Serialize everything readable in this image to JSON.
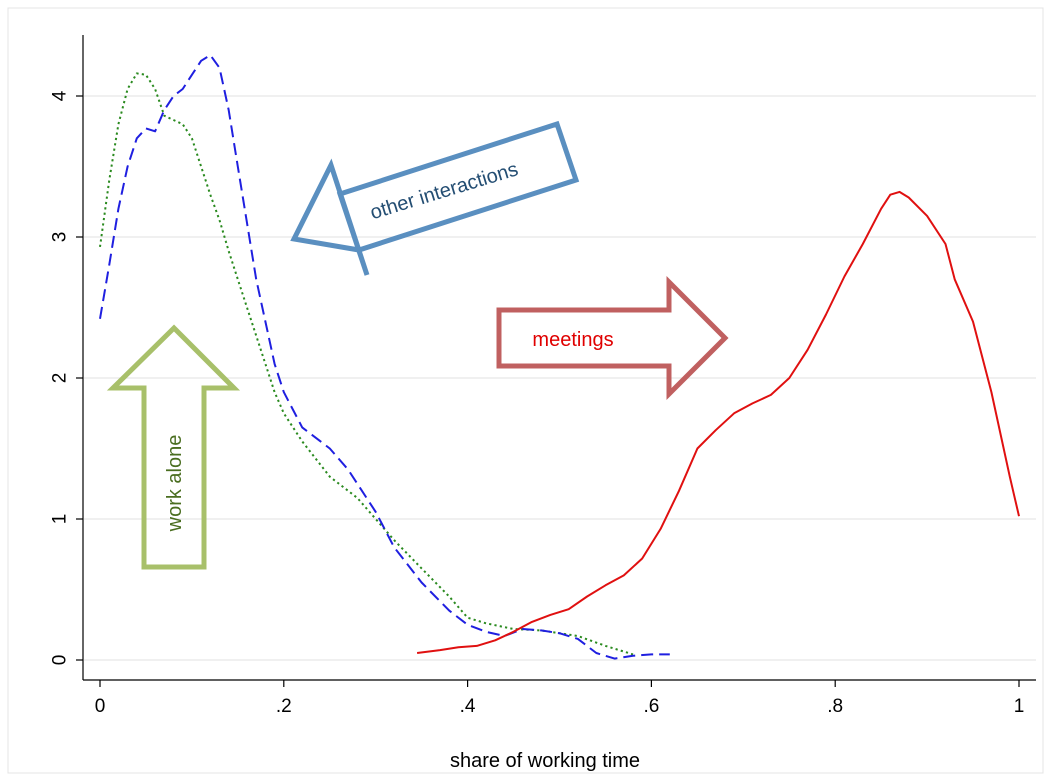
{
  "chart_data": {
    "type": "line",
    "title": "",
    "xlabel": "share of working time",
    "ylabel": "",
    "xlim": [
      0,
      1
    ],
    "ylim": [
      0,
      4.35
    ],
    "grid": true,
    "x_ticks": [
      {
        "value": 0,
        "label": "0"
      },
      {
        "value": 0.2,
        "label": ".2"
      },
      {
        "value": 0.4,
        "label": ".4"
      },
      {
        "value": 0.6,
        "label": ".6"
      },
      {
        "value": 0.8,
        "label": ".8"
      },
      {
        "value": 1,
        "label": "1"
      }
    ],
    "y_ticks": [
      {
        "value": 0,
        "label": "0"
      },
      {
        "value": 1,
        "label": "1"
      },
      {
        "value": 2,
        "label": "2"
      },
      {
        "value": 3,
        "label": "3"
      },
      {
        "value": 4,
        "label": "4"
      }
    ],
    "series": [
      {
        "name": "work alone",
        "color": "#2a8a1f",
        "dash": "dotted",
        "points": [
          [
            0,
            2.93
          ],
          [
            0.01,
            3.4
          ],
          [
            0.02,
            3.8
          ],
          [
            0.03,
            4.05
          ],
          [
            0.04,
            4.16
          ],
          [
            0.05,
            4.15
          ],
          [
            0.06,
            4.05
          ],
          [
            0.07,
            3.86
          ],
          [
            0.08,
            3.83
          ],
          [
            0.09,
            3.8
          ],
          [
            0.1,
            3.7
          ],
          [
            0.11,
            3.5
          ],
          [
            0.12,
            3.3
          ],
          [
            0.13,
            3.12
          ],
          [
            0.14,
            2.9
          ],
          [
            0.15,
            2.7
          ],
          [
            0.16,
            2.5
          ],
          [
            0.17,
            2.3
          ],
          [
            0.18,
            2.1
          ],
          [
            0.19,
            1.9
          ],
          [
            0.2,
            1.75
          ],
          [
            0.22,
            1.55
          ],
          [
            0.25,
            1.3
          ],
          [
            0.28,
            1.15
          ],
          [
            0.3,
            1.0
          ],
          [
            0.32,
            0.85
          ],
          [
            0.35,
            0.65
          ],
          [
            0.38,
            0.45
          ],
          [
            0.4,
            0.3
          ],
          [
            0.42,
            0.26
          ],
          [
            0.45,
            0.22
          ],
          [
            0.48,
            0.21
          ],
          [
            0.5,
            0.19
          ],
          [
            0.52,
            0.17
          ],
          [
            0.55,
            0.1
          ],
          [
            0.58,
            0.04
          ]
        ]
      },
      {
        "name": "other interactions",
        "color": "#1f1fe0",
        "dash": "dashed",
        "points": [
          [
            0,
            2.42
          ],
          [
            0.01,
            2.8
          ],
          [
            0.02,
            3.2
          ],
          [
            0.03,
            3.5
          ],
          [
            0.04,
            3.7
          ],
          [
            0.05,
            3.77
          ],
          [
            0.06,
            3.75
          ],
          [
            0.07,
            3.9
          ],
          [
            0.08,
            4.0
          ],
          [
            0.09,
            4.05
          ],
          [
            0.1,
            4.15
          ],
          [
            0.11,
            4.25
          ],
          [
            0.12,
            4.29
          ],
          [
            0.13,
            4.2
          ],
          [
            0.14,
            3.9
          ],
          [
            0.15,
            3.5
          ],
          [
            0.16,
            3.1
          ],
          [
            0.17,
            2.7
          ],
          [
            0.18,
            2.4
          ],
          [
            0.19,
            2.1
          ],
          [
            0.2,
            1.9
          ],
          [
            0.22,
            1.65
          ],
          [
            0.25,
            1.5
          ],
          [
            0.27,
            1.35
          ],
          [
            0.3,
            1.05
          ],
          [
            0.32,
            0.8
          ],
          [
            0.35,
            0.55
          ],
          [
            0.38,
            0.35
          ],
          [
            0.4,
            0.25
          ],
          [
            0.42,
            0.2
          ],
          [
            0.44,
            0.17
          ],
          [
            0.46,
            0.22
          ],
          [
            0.48,
            0.21
          ],
          [
            0.5,
            0.19
          ],
          [
            0.52,
            0.15
          ],
          [
            0.54,
            0.05
          ],
          [
            0.56,
            0.01
          ],
          [
            0.58,
            0.03
          ],
          [
            0.6,
            0.04
          ],
          [
            0.62,
            0.04
          ]
        ]
      },
      {
        "name": "meetings",
        "color": "#e01010",
        "dash": "solid",
        "points": [
          [
            0.345,
            0.05
          ],
          [
            0.37,
            0.07
          ],
          [
            0.39,
            0.09
          ],
          [
            0.41,
            0.1
          ],
          [
            0.43,
            0.14
          ],
          [
            0.45,
            0.2
          ],
          [
            0.47,
            0.27
          ],
          [
            0.49,
            0.32
          ],
          [
            0.51,
            0.36
          ],
          [
            0.53,
            0.45
          ],
          [
            0.55,
            0.53
          ],
          [
            0.57,
            0.6
          ],
          [
            0.59,
            0.72
          ],
          [
            0.61,
            0.93
          ],
          [
            0.63,
            1.2
          ],
          [
            0.65,
            1.5
          ],
          [
            0.67,
            1.63
          ],
          [
            0.69,
            1.75
          ],
          [
            0.71,
            1.82
          ],
          [
            0.73,
            1.88
          ],
          [
            0.75,
            2.0
          ],
          [
            0.77,
            2.2
          ],
          [
            0.79,
            2.45
          ],
          [
            0.81,
            2.72
          ],
          [
            0.83,
            2.95
          ],
          [
            0.85,
            3.2
          ],
          [
            0.86,
            3.3
          ],
          [
            0.87,
            3.32
          ],
          [
            0.88,
            3.28
          ],
          [
            0.9,
            3.15
          ],
          [
            0.92,
            2.95
          ],
          [
            0.93,
            2.7
          ],
          [
            0.95,
            2.4
          ],
          [
            0.97,
            1.9
          ],
          [
            0.99,
            1.3
          ],
          [
            1.0,
            1.02
          ]
        ]
      }
    ],
    "annotations": [
      {
        "text": "other interactions",
        "color": "#244e73",
        "border_color": "#5a8fc0",
        "direction": "left"
      },
      {
        "text": "meetings",
        "color": "#e00000",
        "border_color": "#c06060",
        "direction": "right"
      },
      {
        "text": "work alone",
        "color": "#4a6e20",
        "border_color": "#a8c06a",
        "direction": "up"
      }
    ]
  }
}
